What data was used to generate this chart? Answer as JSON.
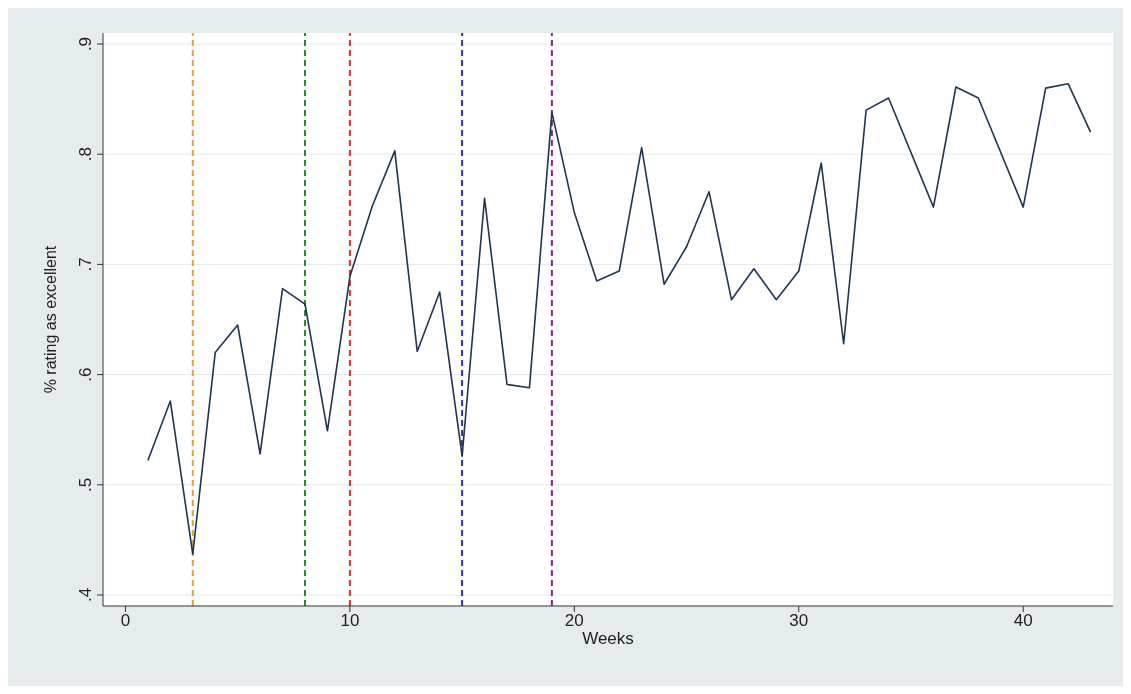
{
  "chart_data": {
    "type": "line",
    "xlabel": "Weeks",
    "ylabel": "% rating as excellent",
    "x": [
      1,
      2,
      3,
      4,
      5,
      6,
      7,
      8,
      9,
      10,
      11,
      12,
      13,
      14,
      15,
      16,
      17,
      18,
      19,
      20,
      21,
      22,
      23,
      24,
      25,
      26,
      27,
      28,
      29,
      30,
      31,
      32,
      33,
      34,
      36,
      37,
      38,
      40,
      41,
      42,
      43
    ],
    "series": [
      {
        "color": "#1f3550",
        "values": [
          0.522,
          0.576,
          0.437,
          0.62,
          0.645,
          0.528,
          0.678,
          0.664,
          0.549,
          0.689,
          0.753,
          0.803,
          0.621,
          0.675,
          0.526,
          0.76,
          0.591,
          0.588,
          0.838,
          0.747,
          0.685,
          0.694,
          0.806,
          0.682,
          0.716,
          0.766,
          0.668,
          0.696,
          0.668,
          0.694,
          0.792,
          0.628,
          0.84,
          0.851,
          0.752,
          0.861,
          0.851,
          0.752,
          0.86,
          0.864,
          0.82
        ]
      }
    ],
    "xlim": [
      -1,
      44
    ],
    "xticks": [
      0,
      10,
      20,
      30,
      40
    ],
    "ylim": [
      0.39,
      0.91
    ],
    "yticks": [
      {
        "value": 0.4,
        "label": ".4"
      },
      {
        "value": 0.5,
        "label": ".5"
      },
      {
        "value": 0.6,
        "label": ".6"
      },
      {
        "value": 0.7,
        "label": ".7"
      },
      {
        "value": 0.8,
        "label": ".8"
      },
      {
        "value": 0.9,
        "label": ".9"
      }
    ],
    "grid": "y",
    "legend": false,
    "marker": "none",
    "line_style": "solid",
    "ref_lines": [
      {
        "axis": "x",
        "value": 3,
        "color": "#e0a040",
        "line_style": "dashed"
      },
      {
        "axis": "x",
        "value": 8,
        "color": "#2a8a2a",
        "line_style": "dashed"
      },
      {
        "axis": "x",
        "value": 10,
        "color": "#e03030",
        "line_style": "dashed"
      },
      {
        "axis": "x",
        "value": 15,
        "color": "#3030a8",
        "line_style": "dashed"
      },
      {
        "axis": "x",
        "value": 19,
        "color": "#902090",
        "line_style": "dashed"
      }
    ]
  }
}
